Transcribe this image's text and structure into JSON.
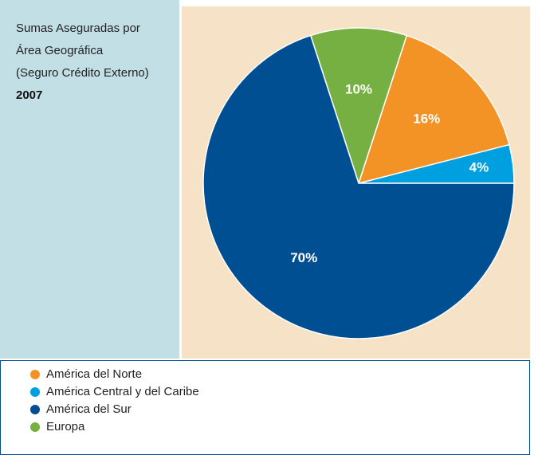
{
  "chart_data": {
    "type": "pie",
    "title": [
      "Sumas Aseguradas por",
      "Área Geográfica",
      "(Seguro Crédito Externo)"
    ],
    "subtitle": "2007",
    "categories": [
      "América del Norte",
      "América Central y del Caribe",
      "América del Sur",
      "Europa"
    ],
    "values": [
      16,
      4,
      70,
      10
    ],
    "value_labels": [
      "16%",
      "4%",
      "70%",
      "10%"
    ],
    "colors": [
      "#f39325",
      "#009fdf",
      "#004f93",
      "#76b043"
    ]
  }
}
